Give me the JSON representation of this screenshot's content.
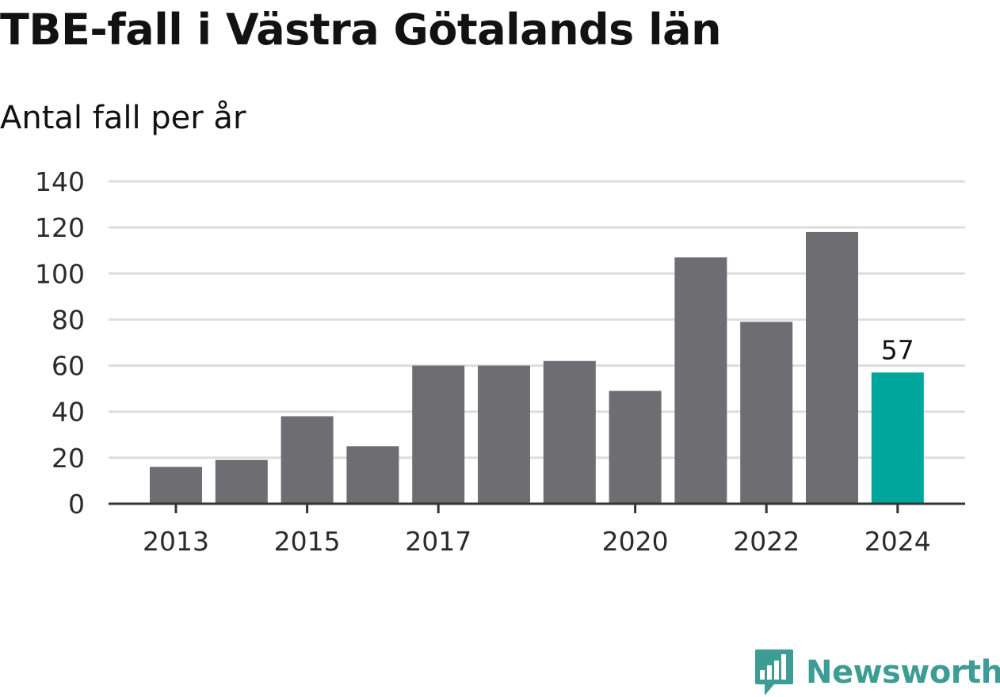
{
  "chart_data": {
    "type": "bar",
    "title": "TBE-fall i Västra Götalands län",
    "subtitle": "Antal fall per år",
    "categories": [
      "2013",
      "2014",
      "2015",
      "2016",
      "2017",
      "2018",
      "2019",
      "2020",
      "2021",
      "2022",
      "2023",
      "2024"
    ],
    "values": [
      16,
      19,
      38,
      25,
      60,
      60,
      62,
      49,
      107,
      79,
      118,
      57
    ],
    "x_tick_labels": [
      "2013",
      "2015",
      "2017",
      "2020",
      "2022",
      "2024"
    ],
    "y_ticks": [
      0,
      20,
      40,
      60,
      80,
      100,
      120,
      140
    ],
    "ylim": [
      0,
      140
    ],
    "highlight": {
      "category": "2024",
      "label": "57"
    },
    "grid": true,
    "colors": {
      "bar": "#6e6d72",
      "highlight": "#00a59b",
      "grid": "#dddddd",
      "axis": "#333333"
    }
  },
  "branding": {
    "logo_text": "Newsworthy",
    "logo_icon": "newsworthy-chart-bubble-icon",
    "logo_color": "#3d9c94"
  }
}
